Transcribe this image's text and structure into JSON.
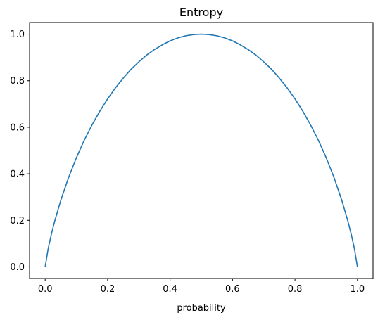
{
  "chart_data": {
    "type": "line",
    "title": "Entropy",
    "xlabel": "probability",
    "ylabel": "",
    "xlim": [
      -0.05,
      1.05
    ],
    "ylim": [
      -0.05,
      1.05
    ],
    "grid": false,
    "x_ticks": [
      0.0,
      0.2,
      0.4,
      0.6,
      0.8,
      1.0
    ],
    "x_tick_labels": [
      "0.0",
      "0.2",
      "0.4",
      "0.6",
      "0.8",
      "1.0"
    ],
    "y_ticks": [
      0.0,
      0.2,
      0.4,
      0.6,
      0.8,
      1.0
    ],
    "y_tick_labels": [
      "0.0",
      "0.2",
      "0.4",
      "0.6",
      "0.8",
      "1.0"
    ],
    "series": [
      {
        "color": "#1f77b4",
        "x": [
          0.0,
          0.01,
          0.02,
          0.03,
          0.05,
          0.075,
          0.1,
          0.125,
          0.15,
          0.175,
          0.2,
          0.225,
          0.25,
          0.275,
          0.3,
          0.325,
          0.35,
          0.375,
          0.4,
          0.425,
          0.45,
          0.475,
          0.5,
          0.525,
          0.55,
          0.575,
          0.6,
          0.625,
          0.65,
          0.675,
          0.7,
          0.725,
          0.75,
          0.775,
          0.8,
          0.825,
          0.85,
          0.875,
          0.9,
          0.925,
          0.95,
          0.97,
          0.98,
          0.99,
          1.0
        ],
        "y": [
          0.0,
          0.081,
          0.141,
          0.194,
          0.286,
          0.384,
          0.469,
          0.544,
          0.61,
          0.669,
          0.722,
          0.769,
          0.811,
          0.849,
          0.881,
          0.91,
          0.934,
          0.954,
          0.971,
          0.984,
          0.993,
          0.998,
          1.0,
          0.998,
          0.993,
          0.984,
          0.971,
          0.954,
          0.934,
          0.91,
          0.881,
          0.849,
          0.811,
          0.769,
          0.722,
          0.669,
          0.61,
          0.544,
          0.469,
          0.384,
          0.286,
          0.194,
          0.141,
          0.081,
          0.0
        ]
      }
    ]
  }
}
